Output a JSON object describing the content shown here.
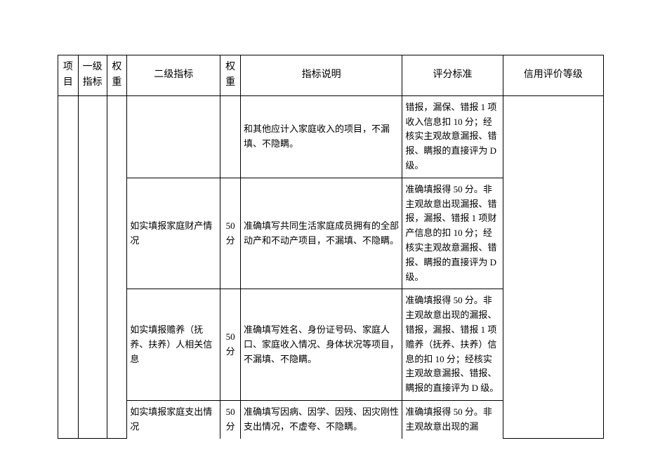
{
  "header": {
    "col1": "项目",
    "col2": "一级指标",
    "col3": "权重",
    "col4": "二级指标",
    "col5": "权重",
    "col6": "指标说明",
    "col7": "评分标准",
    "col8": "信用评价等级"
  },
  "rows": [
    {
      "l2": "",
      "w2": "",
      "desc": "和其他应计入家庭收入的项目，不漏填、不隐瞒。",
      "std": "错报，漏保、错报 1 项收入信息扣 10 分；经核实主观故意漏报、错报、瞒报的直接评为 D 级。"
    },
    {
      "l2": "如实填报家庭财产情况",
      "w2": "50分",
      "desc": "准确填写共同生活家庭成员拥有的全部动产和不动产项目，不漏填、不隐瞒。",
      "std": "准确填报得 50 分。非主观故意出现漏报、错报，漏报、错报 1 项财产信息的扣 10 分；经核实主观故意漏报、错报、瞒报的直接评为 D 级。"
    },
    {
      "l2": "如实填报赡养（抚养、扶养）人相关信息",
      "w2": "50分",
      "desc": "准确填写姓名、身份证号码、家庭人口、家庭收入情况、身体状况等项目，不漏填、不隐瞒。",
      "std": "准确填报得 50 分。非主观故意出现的漏报、错报，漏报、错报 1 项赡养（抚养、扶养）信息的扣 10 分；经核实主观故意漏报、错报、瞒报的直接评为 D 级。"
    },
    {
      "l2": "如实填报家庭支出情况",
      "w2": "50分",
      "desc": "准确填写因病、因学、因残、因灾刚性支出情况，不虚夸、不隐瞒。",
      "std": "准确填报得 50 分。非主观故意出现的漏"
    }
  ]
}
